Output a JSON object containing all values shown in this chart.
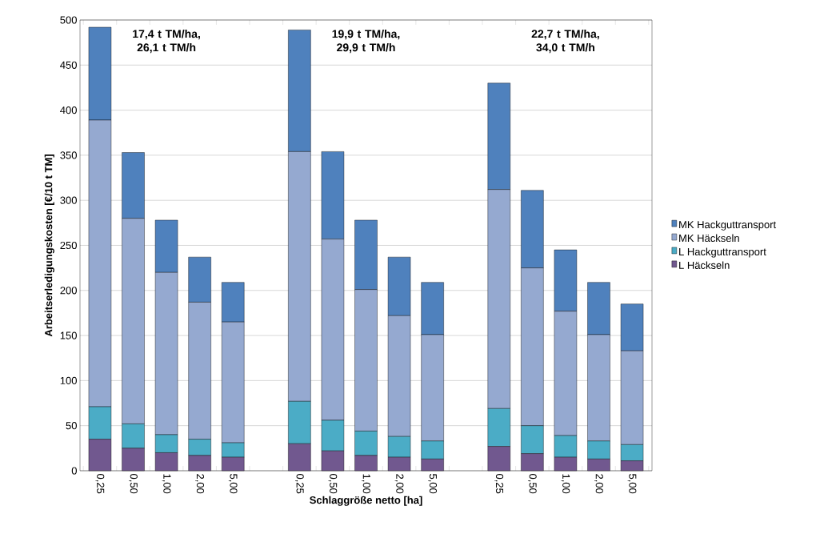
{
  "chart_data": {
    "type": "bar",
    "stacked": true,
    "xlabel": "Schlaggröße netto [ha]",
    "ylabel": "Arbeitserledigungskosten [€/10 t TM]",
    "categories": [
      "0,25",
      "0,50",
      "1,00",
      "2,00",
      "5,00",
      null,
      "0,25",
      "0,50",
      "1,00",
      "2,00",
      "5,00",
      null,
      "0,25",
      "0,50",
      "1,00",
      "2,00",
      "5,00"
    ],
    "series": [
      {
        "name": "L Häckseln",
        "color": "#71588f",
        "values": [
          35,
          25,
          20,
          17,
          15,
          null,
          30,
          22,
          17,
          15,
          13,
          null,
          27,
          19,
          15,
          13,
          11
        ]
      },
      {
        "name": "L Hackguttransport",
        "color": "#4bacc6",
        "values": [
          36,
          27,
          20,
          18,
          16,
          null,
          47,
          34,
          27,
          23,
          20,
          null,
          42,
          31,
          24,
          20,
          18
        ]
      },
      {
        "name": "MK Häckseln",
        "color": "#95a9d0",
        "values": [
          318,
          228,
          180,
          152,
          134,
          null,
          277,
          201,
          157,
          134,
          118,
          null,
          243,
          175,
          138,
          118,
          104
        ]
      },
      {
        "name": "MK Hackguttransport",
        "color": "#4f81bd",
        "values": [
          103,
          73,
          58,
          50,
          44,
          null,
          135,
          97,
          77,
          65,
          58,
          null,
          118,
          86,
          68,
          58,
          52
        ]
      }
    ],
    "ylim": [
      0,
      500
    ],
    "yticks": [
      0,
      50,
      100,
      150,
      200,
      250,
      300,
      350,
      400,
      450,
      500
    ],
    "grid": "y",
    "legend": "right",
    "annotations": [
      "17,4 t TM/ha, 26,1 t TM/h",
      "19,9 t TM/ha, 29,9 t TM/h",
      "22,7 t TM/ha, 34,0 t TM/h"
    ]
  }
}
